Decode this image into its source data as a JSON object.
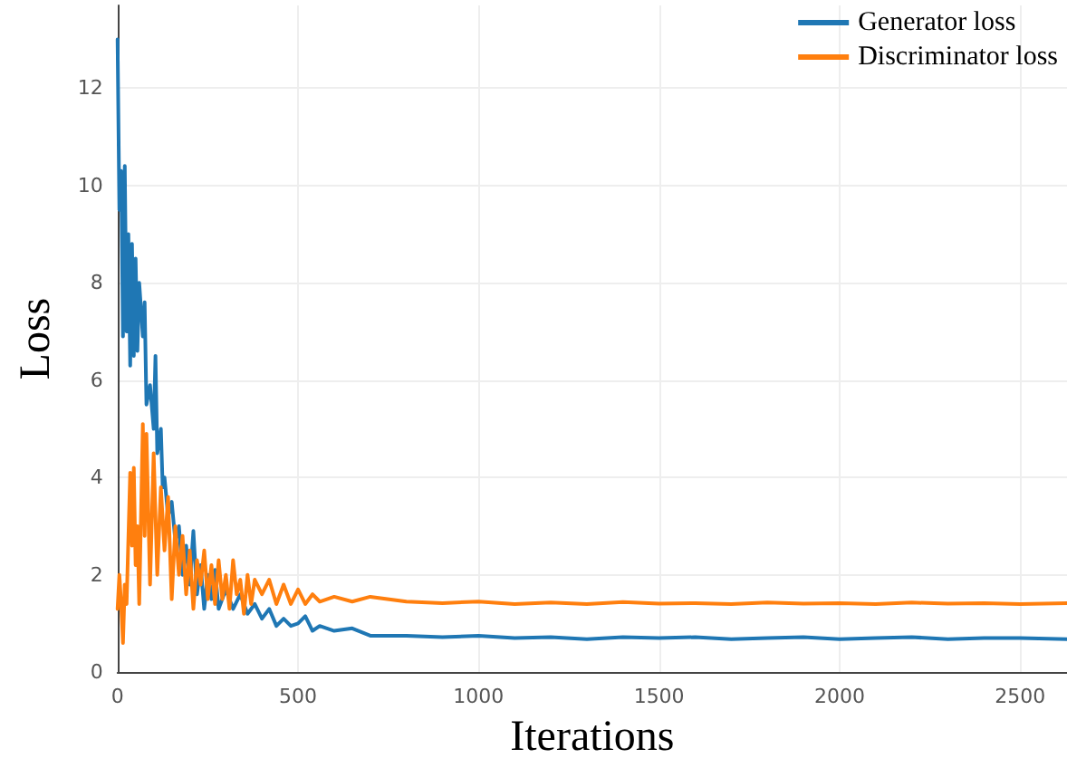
{
  "chart_data": {
    "type": "line",
    "xlabel": "Iterations",
    "ylabel": "Loss",
    "xlim": [
      0,
      2630
    ],
    "xticks": [
      0,
      500,
      1000,
      1500,
      2000,
      2500
    ],
    "ylim": [
      0,
      13.7
    ],
    "yticks": [
      0,
      2,
      4,
      6,
      8,
      10,
      12
    ],
    "grid": true,
    "legend": "top right",
    "marker": "none",
    "line_style": "solid",
    "series": [
      {
        "name": "Generator loss",
        "color": "#1f77b4",
        "x": [
          0,
          5,
          10,
          15,
          20,
          25,
          30,
          35,
          40,
          45,
          50,
          55,
          60,
          70,
          75,
          80,
          90,
          100,
          105,
          110,
          120,
          125,
          130,
          140,
          150,
          160,
          170,
          180,
          190,
          200,
          210,
          220,
          230,
          240,
          250,
          260,
          270,
          280,
          300,
          320,
          340,
          360,
          380,
          400,
          420,
          440,
          460,
          480,
          500,
          520,
          540,
          560,
          600,
          650,
          700,
          800,
          900,
          1000,
          1100,
          1200,
          1300,
          1400,
          1500,
          1600,
          1700,
          1800,
          1900,
          2000,
          2100,
          2200,
          2300,
          2400,
          2500,
          2630
        ],
        "values": [
          13.0,
          9.5,
          10.3,
          6.9,
          10.4,
          7.0,
          9.0,
          6.3,
          8.8,
          6.5,
          8.5,
          6.6,
          8.0,
          6.9,
          7.6,
          5.5,
          5.9,
          5.0,
          6.5,
          4.5,
          5.0,
          3.8,
          4.0,
          3.2,
          3.5,
          2.7,
          3.0,
          2.0,
          2.6,
          1.8,
          2.9,
          1.6,
          2.2,
          1.3,
          2.0,
          1.5,
          2.1,
          1.3,
          1.7,
          1.3,
          1.6,
          1.2,
          1.4,
          1.1,
          1.3,
          0.95,
          1.1,
          0.95,
          1.0,
          1.15,
          0.85,
          0.95,
          0.85,
          0.9,
          0.75,
          0.75,
          0.72,
          0.75,
          0.7,
          0.72,
          0.68,
          0.72,
          0.7,
          0.72,
          0.68,
          0.7,
          0.72,
          0.68,
          0.7,
          0.72,
          0.68,
          0.7,
          0.7,
          0.68
        ]
      },
      {
        "name": "Discriminator loss",
        "color": "#ff7f0e",
        "x": [
          0,
          5,
          10,
          15,
          20,
          25,
          35,
          40,
          45,
          50,
          55,
          60,
          70,
          75,
          80,
          90,
          100,
          110,
          120,
          130,
          140,
          150,
          160,
          170,
          180,
          190,
          200,
          210,
          220,
          230,
          240,
          250,
          260,
          270,
          280,
          290,
          300,
          310,
          320,
          330,
          340,
          350,
          360,
          370,
          380,
          400,
          420,
          440,
          460,
          480,
          500,
          520,
          540,
          560,
          600,
          650,
          700,
          800,
          900,
          1000,
          1100,
          1200,
          1300,
          1400,
          1500,
          1600,
          1700,
          1800,
          1900,
          2000,
          2100,
          2200,
          2300,
          2400,
          2500,
          2630
        ],
        "values": [
          1.3,
          2.0,
          1.4,
          0.6,
          1.8,
          1.4,
          4.1,
          2.6,
          4.2,
          2.2,
          3.0,
          1.4,
          5.1,
          2.8,
          4.9,
          1.8,
          4.5,
          2.0,
          3.8,
          2.5,
          3.6,
          1.5,
          3.0,
          2.0,
          2.8,
          1.6,
          2.5,
          1.3,
          2.3,
          1.8,
          2.5,
          1.5,
          2.2,
          1.4,
          2.3,
          1.5,
          2.0,
          1.3,
          2.3,
          1.6,
          1.9,
          1.2,
          2.0,
          1.4,
          1.9,
          1.6,
          1.9,
          1.4,
          1.8,
          1.4,
          1.7,
          1.4,
          1.6,
          1.45,
          1.55,
          1.45,
          1.55,
          1.45,
          1.42,
          1.45,
          1.4,
          1.43,
          1.4,
          1.44,
          1.41,
          1.42,
          1.4,
          1.43,
          1.41,
          1.42,
          1.4,
          1.43,
          1.41,
          1.42,
          1.4,
          1.42
        ]
      }
    ]
  }
}
